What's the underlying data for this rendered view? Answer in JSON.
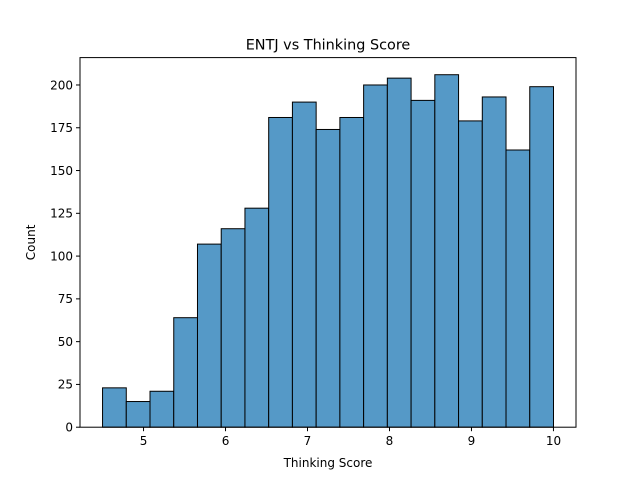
{
  "chart_data": {
    "type": "bar",
    "title": "ENTJ vs Thinking Score",
    "xlabel": "Thinking Score",
    "ylabel": "Count",
    "xlim": [
      4.225,
      10.275
    ],
    "ylim": [
      0,
      216
    ],
    "xticks": [
      "5",
      "6",
      "7",
      "8",
      "9",
      "10"
    ],
    "yticks": [
      "0",
      "25",
      "50",
      "75",
      "100",
      "125",
      "150",
      "175",
      "200"
    ],
    "bin_start": 4.5,
    "bin_width": 0.2895,
    "values": [
      23,
      15,
      21,
      64,
      107,
      116,
      128,
      181,
      190,
      174,
      181,
      200,
      204,
      191,
      206,
      179,
      193,
      162,
      199
    ],
    "bar_color": "#5599c7",
    "edge_color": "#000000"
  }
}
